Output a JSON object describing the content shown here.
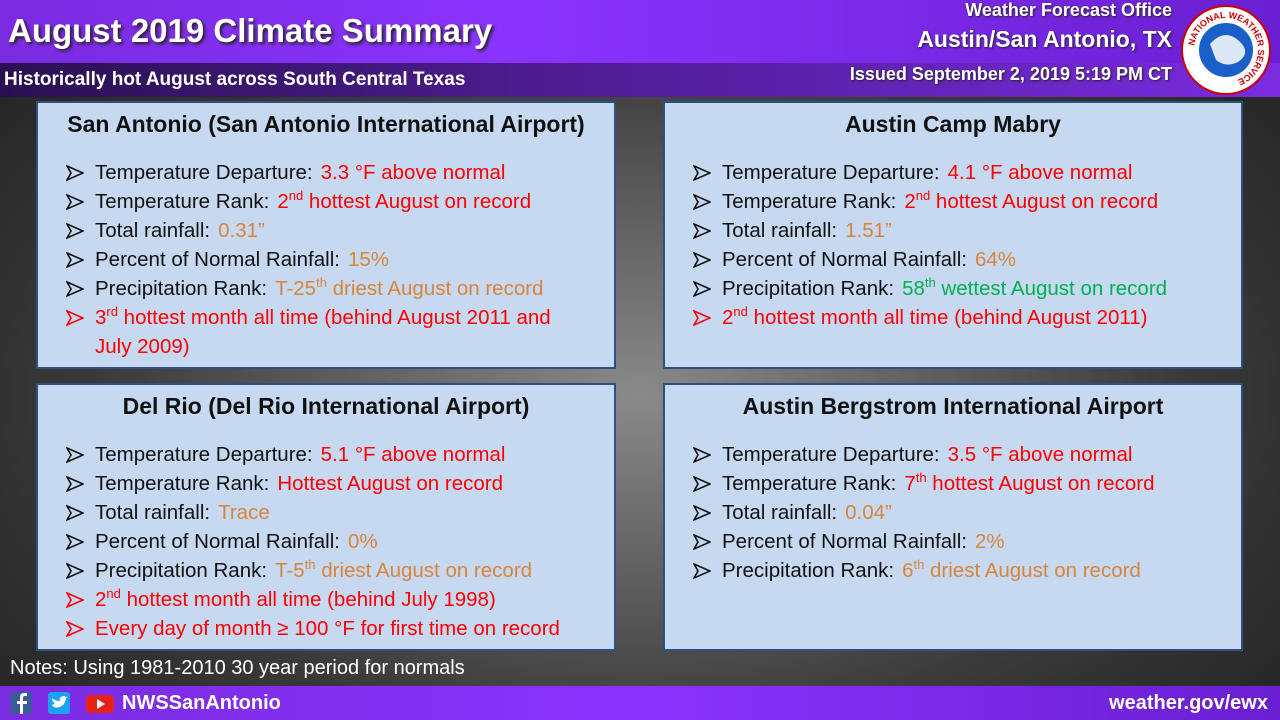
{
  "header": {
    "title": "August 2019 Climate Summary",
    "subtitle": "Historically hot August across South Central Texas",
    "office": "Weather Forecast Office",
    "location": "Austin/San Antonio, TX",
    "issued": "Issued September 2, 2019 5:19 PM CT",
    "logo_text": "NATIONAL WEATHER SERVICE"
  },
  "boxes": [
    {
      "title": "San Antonio (San Antonio International Airport)",
      "items": [
        {
          "label": "Temperature Departure:",
          "color": "#ff0000",
          "value": [
            {
              "text": "3.3 °F above normal"
            }
          ]
        },
        {
          "label": "Temperature Rank:",
          "color": "#ff0000",
          "value": [
            {
              "text": "2"
            },
            {
              "sup": "nd"
            },
            {
              "text": " hottest August on record"
            }
          ]
        },
        {
          "label": "Total rainfall:",
          "color": "#d9843b",
          "value": [
            {
              "text": "0.31”"
            }
          ]
        },
        {
          "label": "Percent of Normal Rainfall:",
          "color": "#d9843b",
          "value": [
            {
              "text": "15%"
            }
          ]
        },
        {
          "label": "Precipitation Rank:",
          "color": "#d9843b",
          "value": [
            {
              "text": "T-25"
            },
            {
              "sup": "th"
            },
            {
              "text": " driest August on record"
            }
          ]
        },
        {
          "color": "#ff0000",
          "arrow_color": "#ff0000",
          "value": [
            {
              "text": "3"
            },
            {
              "sup": "rd"
            },
            {
              "text": " hottest month all time (behind August 2011 and July 2009)"
            }
          ]
        }
      ]
    },
    {
      "title": "Austin Camp Mabry",
      "items": [
        {
          "label": "Temperature Departure:",
          "color": "#ff0000",
          "value": [
            {
              "text": "4.1 °F above normal"
            }
          ]
        },
        {
          "label": "Temperature Rank:",
          "color": "#ff0000",
          "value": [
            {
              "text": "2"
            },
            {
              "sup": "nd"
            },
            {
              "text": " hottest August on record"
            }
          ]
        },
        {
          "label": "Total rainfall:",
          "color": "#d9843b",
          "value": [
            {
              "text": "1.51”"
            }
          ]
        },
        {
          "label": "Percent of Normal Rainfall:",
          "color": "#d9843b",
          "value": [
            {
              "text": "64%"
            }
          ]
        },
        {
          "label": "Precipitation Rank:",
          "color": "#00b050",
          "value": [
            {
              "text": "58"
            },
            {
              "sup": "th"
            },
            {
              "text": " wettest August on record"
            }
          ]
        },
        {
          "color": "#ff0000",
          "arrow_color": "#ff0000",
          "value": [
            {
              "text": "2"
            },
            {
              "sup": "nd"
            },
            {
              "text": " hottest month all time (behind August 2011)"
            }
          ]
        }
      ]
    },
    {
      "title": "Del Rio (Del Rio International Airport)",
      "items": [
        {
          "label": "Temperature Departure:",
          "color": "#ff0000",
          "value": [
            {
              "text": "5.1 °F above normal"
            }
          ]
        },
        {
          "label": "Temperature Rank:",
          "color": "#ff0000",
          "value": [
            {
              "text": "Hottest August on record"
            }
          ]
        },
        {
          "label": "Total rainfall:",
          "color": "#d9843b",
          "value": [
            {
              "text": "Trace"
            }
          ]
        },
        {
          "label": "Percent of Normal Rainfall:",
          "color": "#d9843b",
          "value": [
            {
              "text": "0%"
            }
          ]
        },
        {
          "label": "Precipitation Rank:",
          "color": "#d9843b",
          "value": [
            {
              "text": "T-5"
            },
            {
              "sup": "th"
            },
            {
              "text": " driest August on record"
            }
          ]
        },
        {
          "color": "#ff0000",
          "arrow_color": "#ff0000",
          "value": [
            {
              "text": "2"
            },
            {
              "sup": "nd"
            },
            {
              "text": " hottest month all time (behind July 1998)"
            }
          ]
        },
        {
          "color": "#ff0000",
          "arrow_color": "#ff0000",
          "value": [
            {
              "text": "Every day of month ≥ 100 °F for first time on record"
            }
          ]
        }
      ]
    },
    {
      "title": "Austin Bergstrom International Airport",
      "items": [
        {
          "label": "Temperature Departure:",
          "color": "#ff0000",
          "value": [
            {
              "text": "3.5 °F above normal"
            }
          ]
        },
        {
          "label": "Temperature Rank:",
          "color": "#ff0000",
          "value": [
            {
              "text": "7"
            },
            {
              "sup": "th"
            },
            {
              "text": " hottest August on record"
            }
          ]
        },
        {
          "label": "Total rainfall:",
          "color": "#d9843b",
          "value": [
            {
              "text": "0.04”"
            }
          ]
        },
        {
          "label": "Percent of Normal Rainfall:",
          "color": "#d9843b",
          "value": [
            {
              "text": "2%"
            }
          ]
        },
        {
          "label": "Precipitation Rank:",
          "color": "#d9843b",
          "value": [
            {
              "text": "6"
            },
            {
              "sup": "th"
            },
            {
              "text": " driest August on record"
            }
          ]
        }
      ]
    }
  ],
  "notes": "Notes: Using 1981-2010 30 year period for normals",
  "footer": {
    "handle": "NWSSanAntonio",
    "url": "weather.gov/ewx"
  }
}
